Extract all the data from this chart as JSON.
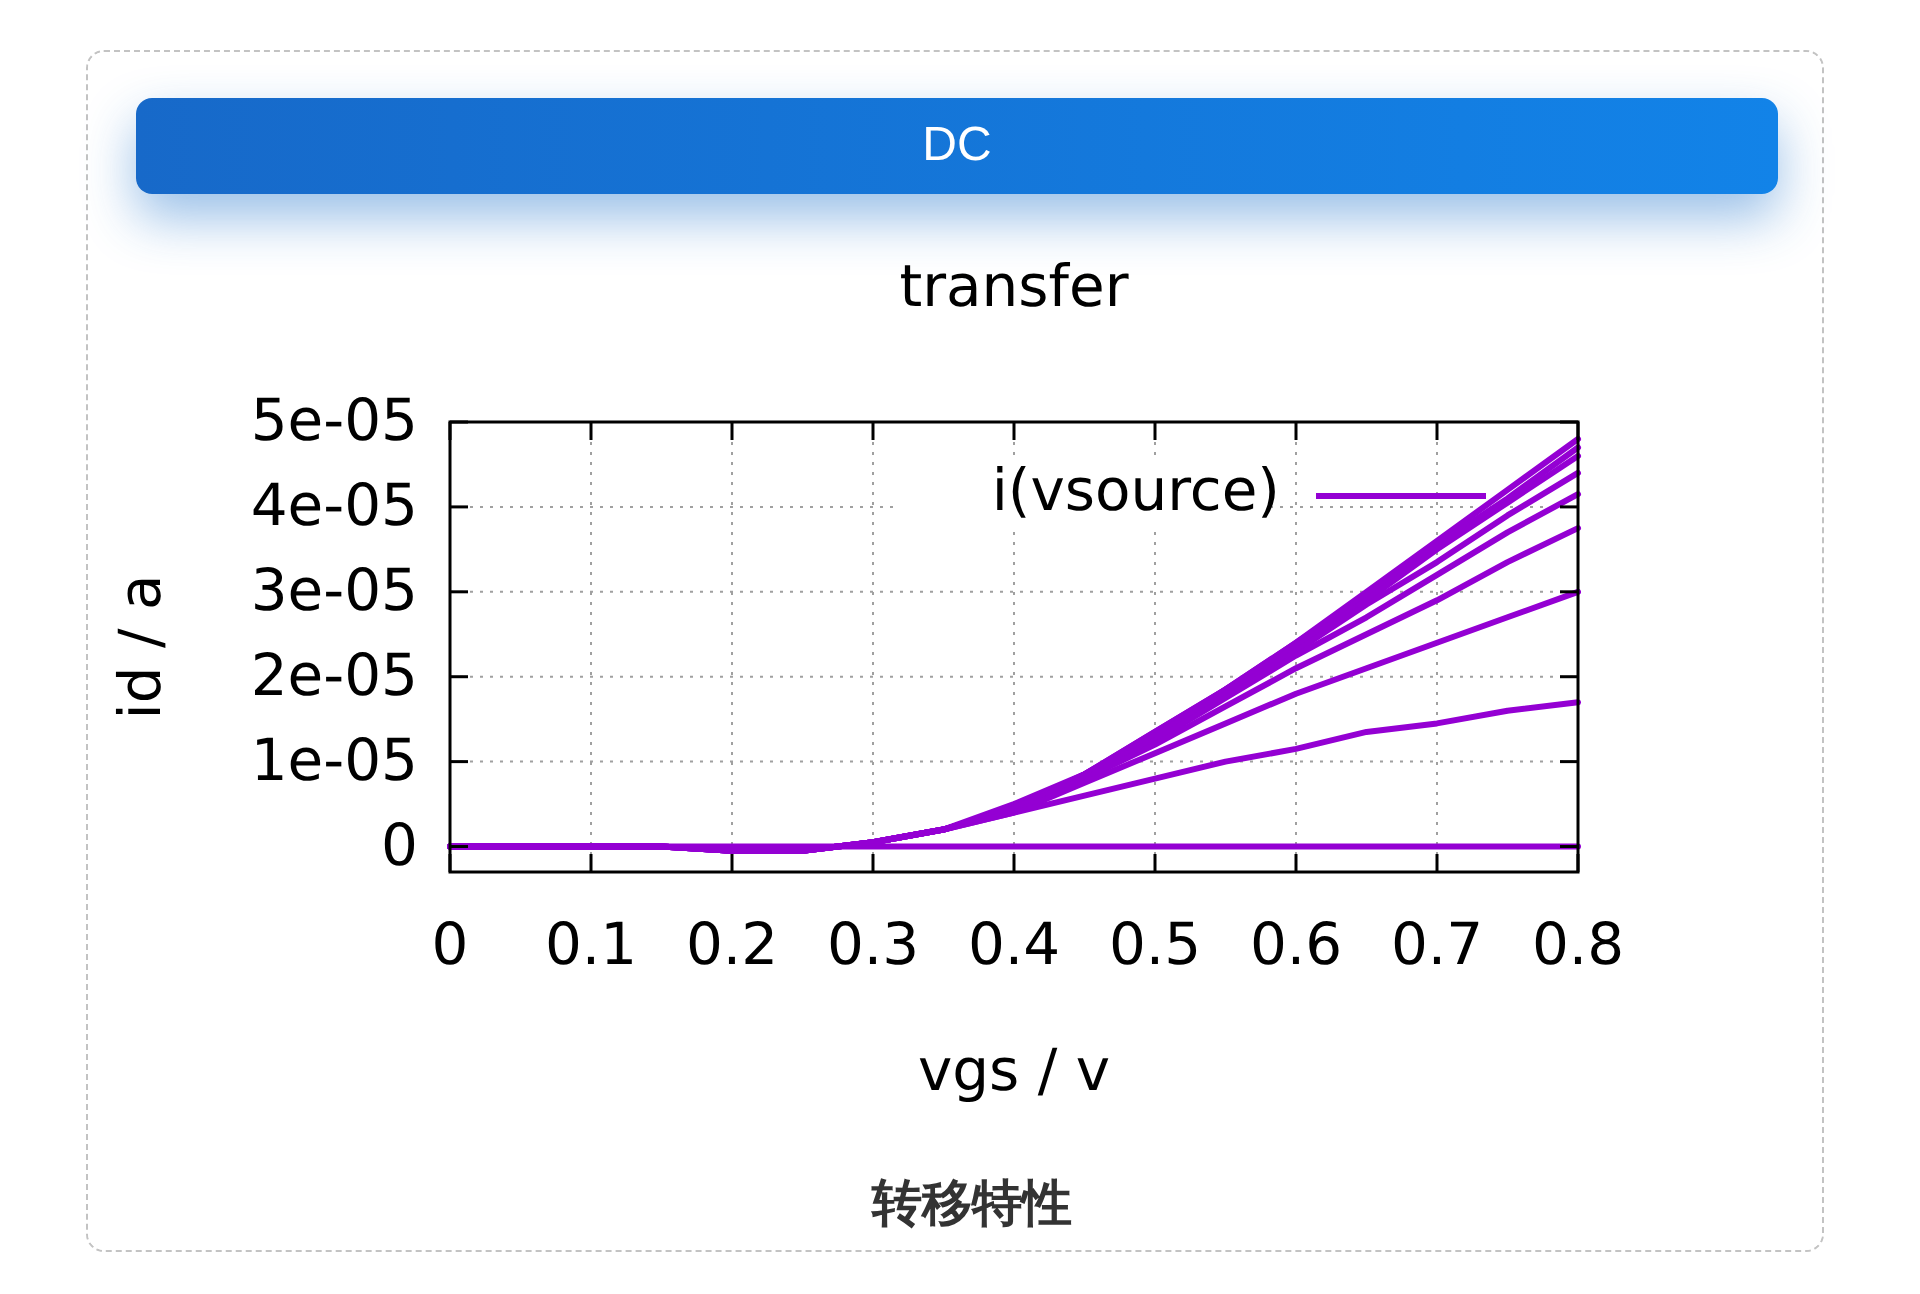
{
  "chart_data": {
    "type": "line",
    "title": "DC",
    "subtitle": "transfer",
    "xlabel": "vgs / v",
    "ylabel": "id / a",
    "annotations": [
      "转移特性"
    ],
    "x": [
      0,
      0.05,
      0.1,
      0.15,
      0.2,
      0.25,
      0.3,
      0.35,
      0.4,
      0.45,
      0.5,
      0.55,
      0.6,
      0.65,
      0.7,
      0.75,
      0.8
    ],
    "series": [
      {
        "name": "i(vsource)",
        "color": "#9400d3",
        "values": [
          0,
          0,
          0,
          0,
          -5e-07,
          -5e-07,
          5e-07,
          2e-06,
          5e-06,
          8.5e-06,
          1.35e-05,
          1.85e-05,
          2.4e-05,
          3e-05,
          3.6e-05,
          4.2e-05,
          4.8e-05
        ]
      },
      {
        "color": "#9400d3",
        "values": [
          0,
          0,
          0,
          0,
          -5e-07,
          -5e-07,
          5e-07,
          2e-06,
          4.5e-06,
          8.5e-06,
          1.35e-05,
          1.85e-05,
          2.4e-05,
          2.95e-05,
          3.55e-05,
          4.1e-05,
          4.7e-05
        ]
      },
      {
        "color": "#9400d3",
        "values": [
          0,
          0,
          0,
          0,
          -5e-07,
          -5e-07,
          5e-07,
          2e-06,
          4.5e-06,
          8.5e-06,
          1.3e-05,
          1.85e-05,
          2.35e-05,
          2.9e-05,
          3.5e-05,
          4.05e-05,
          4.6e-05
        ]
      },
      {
        "color": "#9400d3",
        "values": [
          0,
          0,
          0,
          0,
          -5e-07,
          -5e-07,
          5e-07,
          2e-06,
          4.5e-06,
          8.5e-06,
          1.3e-05,
          1.8e-05,
          2.3e-05,
          2.85e-05,
          3.35e-05,
          3.9e-05,
          4.4e-05
        ]
      },
      {
        "color": "#9400d3",
        "values": [
          0,
          0,
          0,
          0,
          -5e-07,
          -5e-07,
          5e-07,
          2e-06,
          4.5e-06,
          8.5e-06,
          1.25e-05,
          1.75e-05,
          2.25e-05,
          2.7e-05,
          3.2e-05,
          3.7e-05,
          4.15e-05
        ]
      },
      {
        "color": "#9400d3",
        "values": [
          0,
          0,
          0,
          0,
          -5e-07,
          -5e-07,
          5e-07,
          2e-06,
          4.5e-06,
          8e-06,
          1.2e-05,
          1.65e-05,
          2.1e-05,
          2.5e-05,
          2.9e-05,
          3.35e-05,
          3.75e-05
        ]
      },
      {
        "color": "#9400d3",
        "values": [
          0,
          0,
          0,
          0,
          -5e-07,
          -5e-07,
          5e-07,
          2e-06,
          4e-06,
          7.5e-06,
          1.1e-05,
          1.45e-05,
          1.8e-05,
          2.1e-05,
          2.4e-05,
          2.7e-05,
          3e-05
        ]
      },
      {
        "color": "#9400d3",
        "values": [
          0,
          0,
          0,
          0,
          -5e-07,
          -5e-07,
          5e-07,
          2e-06,
          4e-06,
          6e-06,
          8e-06,
          1e-05,
          1.15e-05,
          1.35e-05,
          1.45e-05,
          1.6e-05,
          1.7e-05
        ]
      },
      {
        "color": "#9400d3",
        "values": [
          0,
          0,
          0,
          0,
          0,
          0,
          0,
          0,
          0,
          0,
          0,
          0,
          0,
          0,
          0,
          0,
          0
        ]
      }
    ],
    "xlim": [
      0,
      0.8
    ],
    "ylim": [
      -3e-06,
      5e-05
    ],
    "xticks": [
      0,
      0.1,
      0.2,
      0.3,
      0.4,
      0.5,
      0.6,
      0.7,
      0.8
    ],
    "yticks": [
      0,
      {
        "value": 1e-05,
        "label": "1e-05"
      },
      {
        "value": 2e-05,
        "label": "2e-05"
      },
      {
        "value": 3e-05,
        "label": "3e-05"
      },
      {
        "value": 4e-05,
        "label": "4e-05"
      },
      {
        "value": 5e-05,
        "label": "5e-05"
      }
    ],
    "grid": true,
    "legend": "top right"
  }
}
